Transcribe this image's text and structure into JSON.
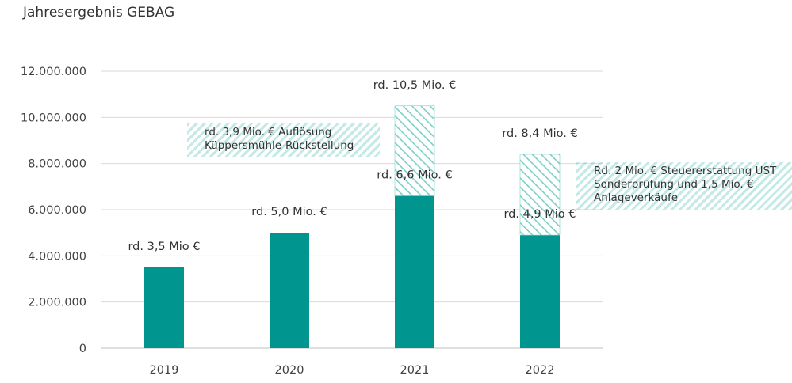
{
  "title": "Jahresergebnis GEBAG",
  "colors": {
    "solid": "#00968f",
    "hatch": "#7ccfc5",
    "grid": "#d9d9d9",
    "axis": "#bfbfbf"
  },
  "chart_data": {
    "type": "bar",
    "stacked": true,
    "title": "Jahresergebnis GEBAG",
    "categories": [
      "2019",
      "2020",
      "2021",
      "2022"
    ],
    "series": [
      {
        "values": [
          3500000,
          5000000,
          6600000,
          4900000
        ]
      },
      {
        "values": [
          0,
          0,
          3900000,
          3500000
        ]
      }
    ],
    "ylim": [
      0,
      12000000
    ],
    "yticks": [
      0,
      2000000,
      4000000,
      6000000,
      8000000,
      10000000,
      12000000
    ],
    "ytick_labels": [
      "0",
      "2.000.000",
      "4.000.000",
      "6.000.000",
      "8.000.000",
      "10.000.000",
      "12.000.000"
    ],
    "grid": true,
    "bar_labels": [
      {
        "category": "2019",
        "text": "rd. 3,5 Mio €",
        "value": 3500000
      },
      {
        "category": "2020",
        "text": "rd. 5,0 Mio. €",
        "value": 5000000
      },
      {
        "category": "2021",
        "text": "rd. 6,6 Mio. €",
        "value": 6600000
      },
      {
        "category": "2021",
        "text": "rd. 10,5 Mio. €",
        "value": 10500000
      },
      {
        "category": "2022",
        "text": "rd. 4,9 Mio €",
        "value": 4900000
      },
      {
        "category": "2022",
        "text": "rd. 8,4 Mio. €",
        "value": 8400000
      }
    ],
    "annotations": [
      {
        "lines": [
          "rd. 3,9 Mio. € Auflösung",
          "Küppersmühle-Rückstellung"
        ]
      },
      {
        "lines": [
          "Rd. 2 Mio. € Steuererstattung UST",
          "Sonderprüfung und 1,5 Mio. €",
          "Anlageverkäufe"
        ]
      }
    ]
  }
}
